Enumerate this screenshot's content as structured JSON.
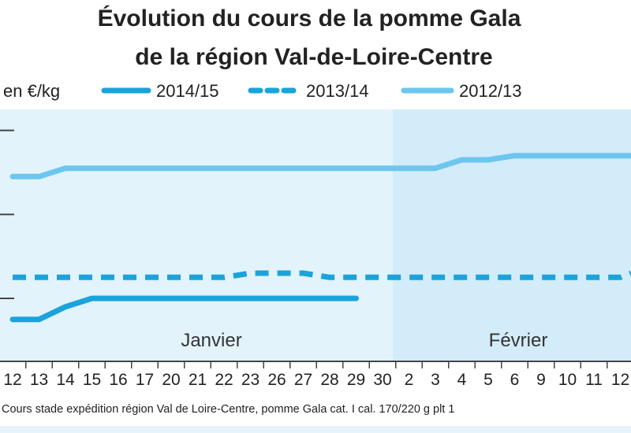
{
  "chart_data": {
    "type": "line",
    "title_lines": [
      "Évolution du cours de la pomme Gala",
      "de la région Val-de-Loire-Centre"
    ],
    "unit_label": "en €/kg",
    "x": [
      "12",
      "13",
      "14",
      "15",
      "16",
      "17",
      "20",
      "21",
      "22",
      "23",
      "26",
      "27",
      "28",
      "29",
      "30",
      "2",
      "3",
      "4",
      "5",
      "6",
      "9",
      "10",
      "11",
      "12"
    ],
    "months": [
      "Janvier",
      "Février"
    ],
    "ylim": [
      0.45,
      1.05
    ],
    "y_gridlines": [
      0.6,
      0.8,
      1.0
    ],
    "y_tick_labels_visible": false,
    "series": [
      {
        "name": "2014/15",
        "style": "solid",
        "color": "#1aa3dc",
        "values": [
          0.55,
          0.55,
          0.58,
          0.6,
          0.6,
          0.6,
          0.6,
          0.6,
          0.6,
          0.6,
          0.6,
          0.6,
          0.6,
          0.6,
          null,
          null,
          null,
          null,
          null,
          null,
          null,
          null,
          null,
          null
        ]
      },
      {
        "name": "2013/14",
        "style": "dashed",
        "color": "#1aa3dc",
        "values": [
          0.65,
          0.65,
          0.65,
          0.65,
          0.65,
          0.65,
          0.65,
          0.65,
          0.65,
          0.66,
          0.66,
          0.66,
          0.65,
          0.65,
          0.65,
          0.65,
          0.65,
          0.65,
          0.65,
          0.65,
          0.65,
          0.65,
          0.65,
          0.65
        ]
      },
      {
        "name": "2012/13",
        "style": "solid",
        "color": "#6cc6ee",
        "values": [
          0.89,
          0.89,
          0.91,
          0.91,
          0.91,
          0.91,
          0.91,
          0.91,
          0.91,
          0.91,
          0.91,
          0.91,
          0.91,
          0.91,
          0.91,
          0.91,
          0.91,
          0.93,
          0.93,
          0.94,
          0.94,
          0.94,
          0.94,
          0.94
        ]
      }
    ],
    "source": "Cours stade expédition région Val de Loire-Centre, pomme Gala cat. I cal. 170/220 g plt 1",
    "colors": {
      "plot_background_january": "#e3f3fc",
      "plot_background_february": "#d3ecfa",
      "axis": "#444444"
    }
  }
}
